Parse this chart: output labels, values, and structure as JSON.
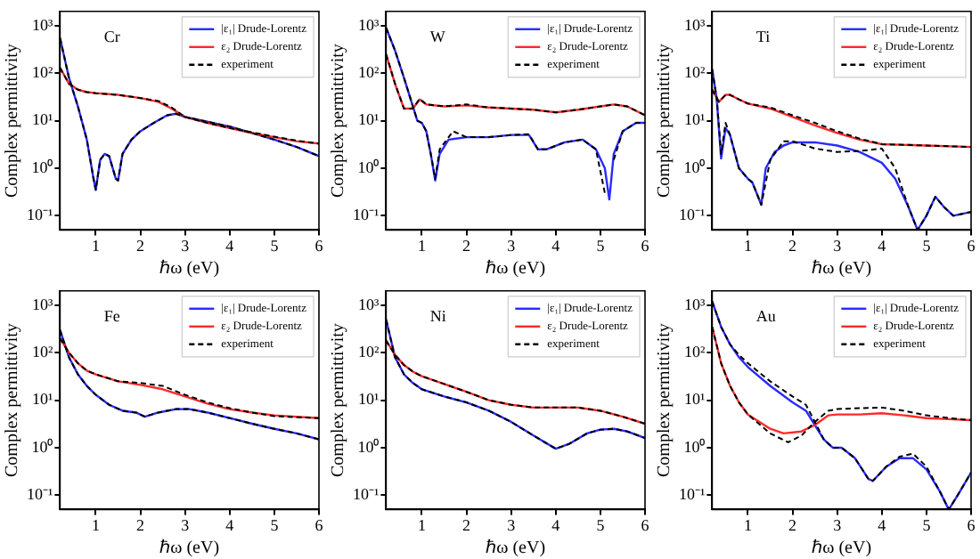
{
  "chart_data": [
    {
      "type": "line",
      "title": "Cr",
      "xlabel": "ℏω (eV)",
      "ylabel": "Complex permittivity",
      "log": "y",
      "legend": "top right",
      "xlim": [
        0.2,
        6
      ],
      "xticks": [
        1,
        2,
        3,
        4,
        5,
        6
      ],
      "ylim": [
        0.05,
        2000
      ],
      "yticks": [
        {
          "value": 0.1,
          "label": "10⁻¹"
        },
        {
          "value": 1,
          "label": "10⁰"
        },
        {
          "value": 10,
          "label": "10¹"
        },
        {
          "value": 100,
          "label": "10²"
        },
        {
          "value": 1000,
          "label": "10³"
        }
      ],
      "series": [
        {
          "name": "|ε₁| Drude-Lorentz",
          "color": "#2a2aff",
          "x": [
            0.2,
            0.4,
            0.6,
            0.8,
            0.95,
            1.0,
            1.1,
            1.2,
            1.3,
            1.45,
            1.5,
            1.6,
            1.8,
            2.0,
            2.3,
            2.6,
            2.8,
            3.0,
            3.5,
            4,
            4.5,
            5,
            5.5,
            6
          ],
          "values": [
            550,
            80,
            20,
            4,
            0.6,
            0.35,
            1.5,
            2,
            1.8,
            0.6,
            0.55,
            2,
            4,
            6,
            9,
            13,
            14,
            12,
            9.5,
            7.5,
            5.5,
            4,
            2.8,
            1.8
          ]
        },
        {
          "name": "ε₂ Drude-Lorentz",
          "color": "#ff2a2a",
          "x": [
            0.2,
            0.4,
            0.6,
            0.8,
            1.0,
            1.5,
            2.0,
            2.4,
            2.7,
            3.0,
            3.5,
            4,
            4.5,
            5,
            5.5,
            6
          ],
          "values": [
            130,
            60,
            45,
            40,
            38,
            35,
            30,
            25,
            18,
            12,
            9,
            7,
            5.5,
            4.5,
            3.7,
            3.3
          ]
        },
        {
          "name": "experiment",
          "color": "#000000",
          "line_style": "dashed",
          "x": [
            0.2,
            0.4,
            0.6,
            0.8,
            0.95,
            1.0,
            1.1,
            1.2,
            1.3,
            1.45,
            1.5,
            1.6,
            1.8,
            2.0,
            2.3,
            2.6,
            2.8,
            3.0,
            3.5,
            4,
            4.5,
            5,
            5.5,
            6
          ],
          "values": [
            550,
            80,
            20,
            4,
            0.6,
            0.35,
            1.5,
            2,
            1.8,
            0.6,
            0.55,
            2,
            4,
            6,
            9,
            13,
            14,
            12,
            9.5,
            7.5,
            5.5,
            4,
            2.8,
            1.8
          ]
        },
        {
          "color": "#000000",
          "line_style": "dashed",
          "x": [
            0.2,
            0.4,
            0.6,
            0.8,
            1.0,
            1.5,
            2.0,
            2.4,
            2.7,
            3.0,
            3.5,
            4,
            4.5,
            5,
            5.5,
            6
          ],
          "values": [
            130,
            60,
            45,
            40,
            38,
            35,
            30,
            26,
            19,
            12,
            9,
            7,
            5.7,
            4.6,
            3.8,
            3.3
          ]
        }
      ]
    },
    {
      "type": "line",
      "title": "W",
      "xlabel": "ℏω (eV)",
      "ylabel": "Complex permittivity",
      "log": "y",
      "legend": "top right",
      "xlim": [
        0.2,
        6
      ],
      "xticks": [
        1,
        2,
        3,
        4,
        5,
        6
      ],
      "ylim": [
        0.05,
        2000
      ],
      "yticks": [
        {
          "value": 0.1,
          "label": "10⁻¹"
        },
        {
          "value": 1,
          "label": "10⁰"
        },
        {
          "value": 10,
          "label": "10¹"
        },
        {
          "value": 100,
          "label": "10²"
        },
        {
          "value": 1000,
          "label": "10³"
        }
      ],
      "series": [
        {
          "name": "|ε₁| Drude-Lorentz",
          "color": "#2a2aff",
          "x": [
            0.2,
            0.4,
            0.6,
            0.8,
            0.9,
            1.0,
            1.1,
            1.2,
            1.3,
            1.4,
            1.6,
            2,
            2.5,
            3,
            3.4,
            3.6,
            3.8,
            4.2,
            4.6,
            4.9,
            5.1,
            5.2,
            5.3,
            5.5,
            5.8,
            6
          ],
          "values": [
            900,
            300,
            80,
            20,
            10,
            9,
            6,
            2,
            0.55,
            2,
            4,
            4.5,
            4.5,
            5,
            5,
            2.5,
            2.5,
            3.5,
            4,
            2.5,
            1,
            0.22,
            2,
            6,
            9,
            9
          ]
        },
        {
          "name": "ε₂ Drude-Lorentz",
          "color": "#ff2a2a",
          "x": [
            0.2,
            0.4,
            0.6,
            0.8,
            0.95,
            1.1,
            1.5,
            2,
            2.5,
            3,
            3.5,
            4,
            4.5,
            5,
            5.3,
            5.6,
            6
          ],
          "values": [
            250,
            60,
            18,
            18,
            28,
            22,
            20,
            21,
            19,
            18,
            17,
            15,
            17,
            20,
            22,
            20,
            13
          ]
        },
        {
          "name": "experiment",
          "color": "#000000",
          "line_style": "dashed",
          "x": [
            0.2,
            0.4,
            0.6,
            0.8,
            0.9,
            1.0,
            1.1,
            1.2,
            1.3,
            1.4,
            1.7,
            2,
            2.5,
            3,
            3.4,
            3.6,
            3.8,
            4.2,
            4.6,
            4.9,
            5.1,
            5.15,
            5.25,
            5.3,
            5.5,
            5.8,
            6
          ],
          "values": [
            900,
            300,
            80,
            20,
            10,
            9,
            6,
            2,
            0.6,
            2.5,
            6,
            4.5,
            4.5,
            5,
            5.2,
            2.5,
            2.5,
            3.5,
            4,
            2.5,
            0.3,
            null,
            null,
            1.5,
            6,
            9,
            9
          ]
        },
        {
          "color": "#000000",
          "line_style": "dashed",
          "x": [
            0.2,
            0.4,
            0.6,
            0.8,
            0.95,
            1.1,
            1.5,
            2,
            2.5,
            3,
            3.5,
            4,
            4.5,
            5,
            5.3,
            5.6,
            6
          ],
          "values": [
            250,
            60,
            18,
            18,
            29,
            22,
            20,
            22,
            19,
            18,
            17,
            15,
            17,
            20,
            22,
            20,
            13
          ]
        }
      ]
    },
    {
      "type": "line",
      "title": "Ti",
      "xlabel": "ℏω (eV)",
      "ylabel": "Complex permittivity",
      "log": "y",
      "legend": "top right",
      "xlim": [
        0.2,
        6
      ],
      "xticks": [
        1,
        2,
        3,
        4,
        5,
        6
      ],
      "ylim": [
        0.05,
        2000
      ],
      "yticks": [
        {
          "value": 0.1,
          "label": "10⁻¹"
        },
        {
          "value": 1,
          "label": "10⁰"
        },
        {
          "value": 10,
          "label": "10¹"
        },
        {
          "value": 100,
          "label": "10²"
        },
        {
          "value": 1000,
          "label": "10³"
        }
      ],
      "series": [
        {
          "name": "|ε₁| Drude-Lorentz",
          "color": "#2a2aff",
          "x": [
            0.2,
            0.3,
            0.4,
            0.5,
            0.6,
            0.8,
            1.0,
            1.1,
            1.3,
            1.4,
            1.6,
            1.8,
            2.0,
            2.5,
            3,
            3.5,
            4,
            4.3,
            4.6,
            4.8,
            5.0,
            5.2,
            5.4,
            5.6,
            6
          ],
          "values": [
            120,
            30,
            1.6,
            7,
            5,
            1,
            0.6,
            0.5,
            0.17,
            1,
            2.2,
            3,
            3.5,
            3.5,
            3,
            2.2,
            1.3,
            0.6,
            0.15,
            0.05,
            0.1,
            0.25,
            0.15,
            0.1,
            0.12
          ]
        },
        {
          "name": "ε₂ Drude-Lorentz",
          "color": "#ff2a2a",
          "x": [
            0.2,
            0.35,
            0.5,
            0.6,
            0.8,
            1.0,
            1.5,
            2,
            2.5,
            3,
            3.5,
            4,
            5,
            6
          ],
          "values": [
            45,
            25,
            35,
            35,
            28,
            23,
            18,
            12,
            8,
            5.5,
            4,
            3.2,
            3,
            2.8
          ]
        },
        {
          "name": "experiment",
          "color": "#000000",
          "line_style": "dashed",
          "x": [
            0.2,
            0.3,
            0.4,
            0.5,
            0.6,
            0.8,
            1.0,
            1.1,
            1.3,
            1.5,
            1.8,
            2.0,
            2.5,
            3,
            3.5,
            4,
            4.3,
            4.6,
            4.8,
            5.0,
            5.2,
            5.4,
            5.6,
            6
          ],
          "values": [
            120,
            30,
            2,
            9,
            5,
            1,
            0.6,
            0.5,
            0.17,
            1.5,
            3.7,
            3.7,
            2.6,
            2.2,
            2.3,
            2.6,
            1,
            0.15,
            0.05,
            0.1,
            0.25,
            0.15,
            0.1,
            0.12
          ]
        },
        {
          "color": "#000000",
          "line_style": "dashed",
          "x": [
            0.2,
            0.35,
            0.5,
            0.6,
            0.8,
            1.0,
            1.5,
            2,
            2.5,
            3,
            3.5,
            4,
            5,
            6
          ],
          "values": [
            45,
            25,
            35,
            35,
            28,
            23,
            19,
            13,
            9,
            6,
            4.2,
            3.2,
            3,
            2.8
          ]
        }
      ]
    },
    {
      "type": "line",
      "title": "Fe",
      "xlabel": "ℏω (eV)",
      "ylabel": "Complex permittivity",
      "log": "y",
      "legend": "top right",
      "xlim": [
        0.2,
        6
      ],
      "xticks": [
        1,
        2,
        3,
        4,
        5,
        6
      ],
      "ylim": [
        0.05,
        2000
      ],
      "yticks": [
        {
          "value": 0.1,
          "label": "10⁻¹"
        },
        {
          "value": 1,
          "label": "10⁰"
        },
        {
          "value": 10,
          "label": "10¹"
        },
        {
          "value": 100,
          "label": "10²"
        },
        {
          "value": 1000,
          "label": "10³"
        }
      ],
      "series": [
        {
          "name": "|ε₁| Drude-Lorentz",
          "color": "#2a2aff",
          "x": [
            0.2,
            0.4,
            0.6,
            0.8,
            1,
            1.3,
            1.6,
            1.9,
            2.1,
            2.4,
            2.8,
            3.1,
            3.5,
            4,
            4.5,
            5,
            5.5,
            6
          ],
          "values": [
            300,
            80,
            35,
            20,
            13,
            8,
            6,
            5.5,
            4.5,
            5.5,
            6.5,
            6.5,
            5.5,
            4.2,
            3.2,
            2.5,
            2,
            1.5
          ]
        },
        {
          "name": "ε₂ Drude-Lorentz",
          "color": "#ff2a2a",
          "x": [
            0.2,
            0.4,
            0.6,
            0.8,
            1,
            1.5,
            2,
            2.5,
            3,
            3.5,
            4,
            4.5,
            5,
            6
          ],
          "values": [
            200,
            100,
            60,
            42,
            35,
            25,
            21,
            17,
            12,
            8.5,
            6.5,
            5.5,
            4.8,
            4.2
          ]
        },
        {
          "name": "experiment",
          "color": "#000000",
          "line_style": "dashed",
          "x": [
            0.2,
            0.4,
            0.6,
            0.8,
            1,
            1.3,
            1.6,
            1.9,
            2.1,
            2.4,
            2.8,
            3.1,
            3.5,
            4,
            4.5,
            5,
            5.5,
            6
          ],
          "values": [
            300,
            80,
            35,
            20,
            13,
            8,
            6,
            5.5,
            4.5,
            5.5,
            6.5,
            6.5,
            5.5,
            4.2,
            3.2,
            2.5,
            2,
            1.5
          ]
        },
        {
          "color": "#000000",
          "line_style": "dashed",
          "x": [
            0.2,
            0.4,
            0.6,
            0.8,
            1,
            1.5,
            2,
            2.5,
            3,
            3.5,
            4,
            4.5,
            5,
            6
          ],
          "values": [
            200,
            100,
            60,
            42,
            35,
            25,
            23,
            20,
            13,
            9,
            6.8,
            5.5,
            4.6,
            4.2
          ]
        }
      ]
    },
    {
      "type": "line",
      "title": "Ni",
      "xlabel": "ℏω (eV)",
      "ylabel": "Complex permittivity",
      "log": "y",
      "legend": "top right",
      "xlim": [
        0.2,
        6
      ],
      "xticks": [
        1,
        2,
        3,
        4,
        5,
        6
      ],
      "ylim": [
        0.05,
        2000
      ],
      "yticks": [
        {
          "value": 0.1,
          "label": "10⁻¹"
        },
        {
          "value": 1,
          "label": "10⁰"
        },
        {
          "value": 10,
          "label": "10¹"
        },
        {
          "value": 100,
          "label": "10²"
        },
        {
          "value": 1000,
          "label": "10³"
        }
      ],
      "series": [
        {
          "name": "|ε₁| Drude-Lorentz",
          "color": "#2a2aff",
          "x": [
            0.2,
            0.4,
            0.6,
            0.8,
            1,
            1.5,
            2,
            2.5,
            3,
            3.5,
            4,
            4.3,
            4.7,
            5,
            5.3,
            5.6,
            6
          ],
          "values": [
            500,
            80,
            35,
            23,
            17,
            12,
            9,
            6,
            3.5,
            1.8,
            0.95,
            1.2,
            2,
            2.4,
            2.5,
            2.2,
            1.6
          ]
        },
        {
          "name": "ε₂ Drude-Lorentz",
          "color": "#ff2a2a",
          "x": [
            0.2,
            0.4,
            0.6,
            0.8,
            1,
            1.5,
            2,
            2.5,
            3,
            3.5,
            4,
            4.5,
            5,
            5.5,
            6
          ],
          "values": [
            180,
            90,
            55,
            40,
            32,
            22,
            15,
            10,
            8,
            7,
            7,
            7,
            6,
            4.5,
            3.2
          ]
        },
        {
          "name": "experiment",
          "color": "#000000",
          "line_style": "dashed",
          "x": [
            0.2,
            0.4,
            0.6,
            0.8,
            1,
            1.5,
            2,
            2.5,
            3,
            3.5,
            4,
            4.3,
            4.7,
            5,
            5.3,
            5.6,
            6
          ],
          "values": [
            500,
            80,
            35,
            23,
            17,
            12,
            9,
            6,
            3.5,
            1.8,
            0.95,
            1.2,
            2,
            2.4,
            2.5,
            2.2,
            1.6
          ]
        },
        {
          "color": "#000000",
          "line_style": "dashed",
          "x": [
            0.2,
            0.4,
            0.6,
            0.8,
            1,
            1.5,
            2,
            2.5,
            3,
            3.5,
            4,
            4.5,
            5,
            5.5,
            6
          ],
          "values": [
            180,
            90,
            55,
            40,
            32,
            22,
            15,
            10,
            8,
            7,
            7,
            7,
            6,
            4.5,
            3.2
          ]
        }
      ]
    },
    {
      "type": "line",
      "title": "Au",
      "xlabel": "ℏω (eV)",
      "ylabel": "Complex permittivity",
      "log": "y",
      "legend": "top right",
      "xlim": [
        0.2,
        6
      ],
      "xticks": [
        1,
        2,
        3,
        4,
        5,
        6
      ],
      "ylim": [
        0.05,
        2000
      ],
      "yticks": [
        {
          "value": 0.1,
          "label": "10⁻¹"
        },
        {
          "value": 1,
          "label": "10⁰"
        },
        {
          "value": 10,
          "label": "10¹"
        },
        {
          "value": 100,
          "label": "10²"
        },
        {
          "value": 1000,
          "label": "10³"
        }
      ],
      "series": [
        {
          "name": "|ε₁| Drude-Lorentz",
          "color": "#2a2aff",
          "x": [
            0.2,
            0.4,
            0.6,
            0.8,
            1,
            1.5,
            2,
            2.3,
            2.5,
            2.7,
            2.9,
            3.1,
            3.4,
            3.7,
            3.8,
            4.1,
            4.4,
            4.7,
            5.0,
            5.3,
            5.5,
            5.7,
            6
          ],
          "values": [
            1200,
            350,
            150,
            80,
            50,
            20,
            9,
            6,
            3,
            1.5,
            1,
            1,
            0.6,
            0.22,
            0.2,
            0.4,
            0.6,
            0.6,
            0.35,
            0.12,
            0.05,
            0.1,
            0.3
          ]
        },
        {
          "name": "ε₂ Drude-Lorentz",
          "color": "#ff2a2a",
          "x": [
            0.2,
            0.4,
            0.6,
            0.8,
            1,
            1.5,
            1.8,
            2.2,
            2.5,
            2.8,
            3,
            3.5,
            4,
            4.5,
            5,
            5.5,
            6
          ],
          "values": [
            350,
            60,
            20,
            9,
            5,
            2.5,
            2,
            2.2,
            3,
            4.8,
            5,
            5,
            5.3,
            4.8,
            4.2,
            4,
            3.8
          ]
        },
        {
          "name": "experiment",
          "color": "#000000",
          "line_style": "dashed",
          "x": [
            0.2,
            0.4,
            0.6,
            0.8,
            1,
            1.5,
            2,
            2.3,
            2.5,
            2.7,
            2.9,
            3.1,
            3.4,
            3.7,
            3.8,
            4.1,
            4.4,
            4.7,
            5.0,
            5.3,
            5.5,
            5.7,
            6
          ],
          "values": [
            1200,
            350,
            150,
            90,
            60,
            25,
            12,
            8,
            3.5,
            1.5,
            1,
            1,
            0.6,
            0.22,
            0.2,
            0.4,
            0.65,
            0.75,
            0.4,
            0.12,
            0.05,
            0.1,
            0.3
          ]
        },
        {
          "color": "#000000",
          "line_style": "dashed",
          "x": [
            0.2,
            0.4,
            0.6,
            0.8,
            1,
            1.5,
            1.9,
            2.2,
            2.5,
            2.8,
            3,
            3.5,
            4,
            4.5,
            5,
            5.5,
            6
          ],
          "values": [
            350,
            60,
            20,
            9,
            5,
            2,
            1.3,
            1.8,
            3.5,
            6,
            6.5,
            6.8,
            7,
            6,
            4.8,
            4.2,
            3.8
          ]
        }
      ]
    }
  ]
}
